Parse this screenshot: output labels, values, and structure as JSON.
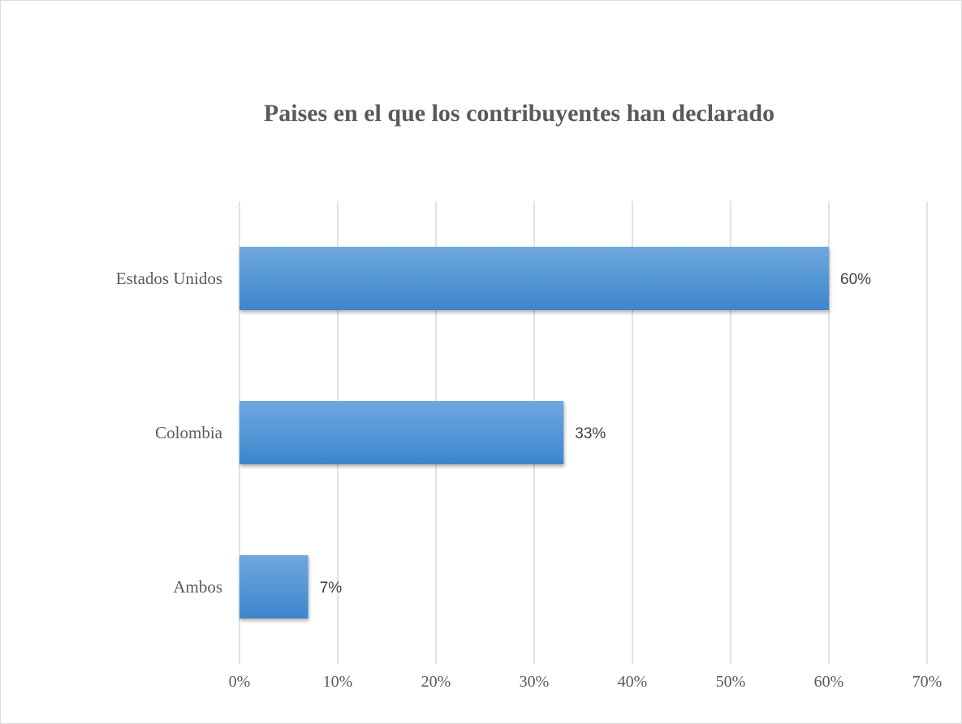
{
  "chart_data": {
    "type": "bar",
    "orientation": "horizontal",
    "title": "Paises en el que los contribuyentes han declarado",
    "categories": [
      "Estados Unidos",
      "Colombia",
      "Ambos"
    ],
    "values": [
      0.6,
      0.33,
      0.07
    ],
    "data_labels": [
      "60%",
      "33%",
      "7%"
    ],
    "xlim": [
      0,
      0.7
    ],
    "x_ticks": [
      0,
      0.1,
      0.2,
      0.3,
      0.4,
      0.5,
      0.6,
      0.7
    ],
    "x_tick_labels": [
      "0%",
      "10%",
      "20%",
      "30%",
      "40%",
      "50%",
      "60%",
      "70%"
    ],
    "xlabel": "",
    "ylabel": "",
    "grid": "vertical",
    "legend": "none",
    "colors": {
      "bar_top": "#6fa8e0",
      "bar_bottom": "#3c86cc",
      "grid": "#d9d9d9",
      "text": "#595959",
      "label_text": "#404040"
    }
  }
}
